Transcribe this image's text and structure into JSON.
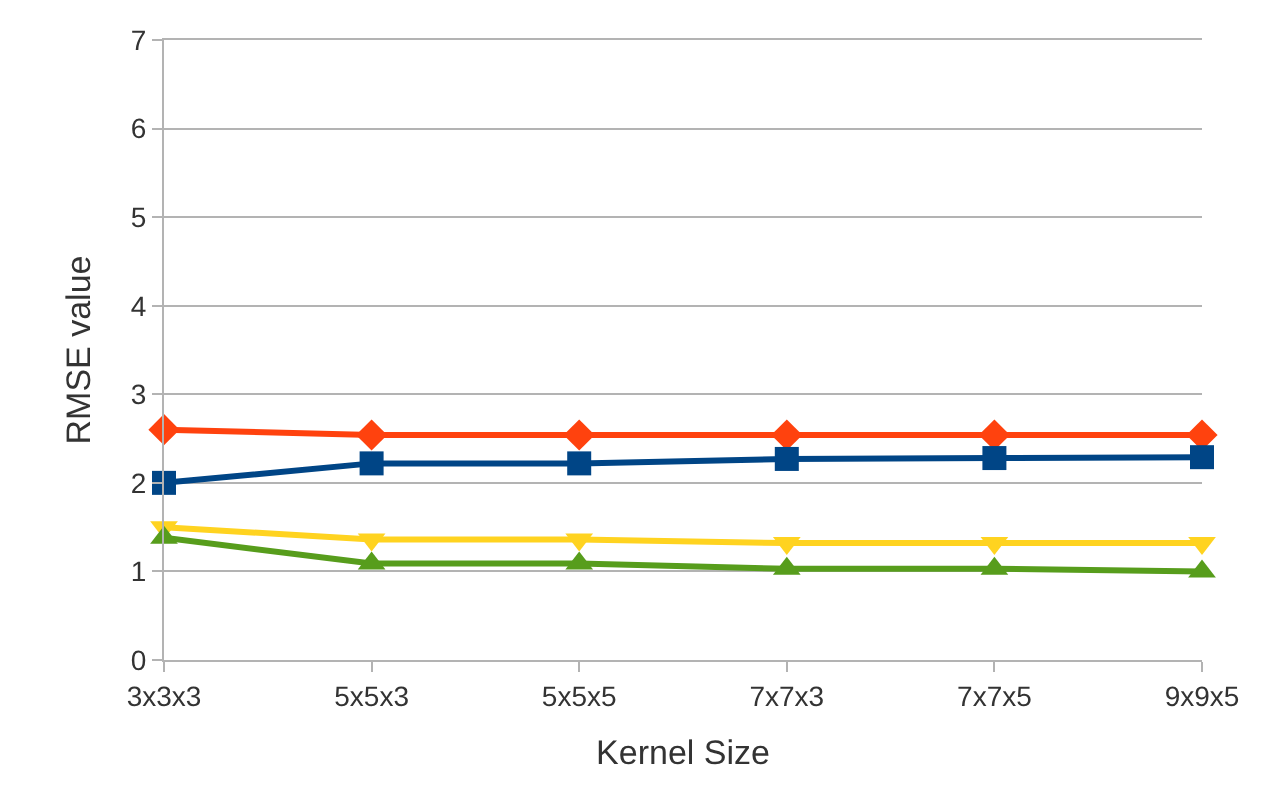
{
  "chart_data": {
    "type": "line",
    "xlabel": "Kernel Size",
    "ylabel": "RMSE value",
    "categories": [
      "3x3x3",
      "5x5x3",
      "5x5x5",
      "7x7x3",
      "7x7x5",
      "9x9x5"
    ],
    "series": [
      {
        "color": "#ff420e",
        "marker": "diamond",
        "values": [
          2.6,
          2.54,
          2.54,
          2.54,
          2.54,
          2.54
        ]
      },
      {
        "color": "#004586",
        "marker": "square",
        "values": [
          2.0,
          2.22,
          2.22,
          2.27,
          2.28,
          2.29
        ]
      },
      {
        "color": "#ffd320",
        "marker": "triangle-down",
        "values": [
          1.5,
          1.36,
          1.36,
          1.32,
          1.32,
          1.32
        ]
      },
      {
        "color": "#579d1c",
        "marker": "triangle",
        "values": [
          1.38,
          1.09,
          1.09,
          1.03,
          1.03,
          1.0
        ]
      }
    ],
    "ylim": [
      0,
      7
    ],
    "yticks": [
      0,
      1,
      2,
      3,
      4,
      5,
      6,
      7
    ],
    "grid": "y",
    "line_style": "solid"
  }
}
